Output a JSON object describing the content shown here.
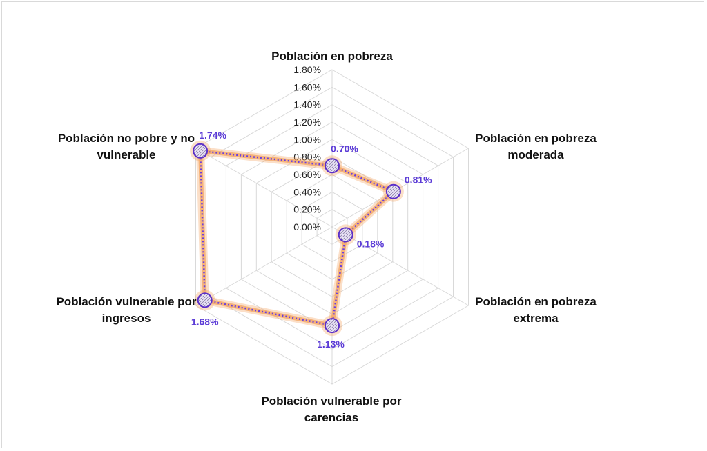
{
  "chart_data": {
    "type": "radar",
    "categories": [
      "Población en pobreza",
      "Población en pobreza moderada",
      "Población en pobreza extrema",
      "Población vulnerable por carencias",
      "Población vulnerable por ingresos",
      "Población no pobre y no vulnerable"
    ],
    "category_lines": [
      [
        "Población en pobreza"
      ],
      [
        "Población en pobreza",
        "moderada"
      ],
      [
        "Población en pobreza",
        "extrema"
      ],
      [
        "Población vulnerable por",
        "carencias"
      ],
      [
        "Población vulnerable por",
        "ingresos"
      ],
      [
        "Población no pobre y no",
        "vulnerable"
      ]
    ],
    "series": [
      {
        "values": [
          0.7,
          0.81,
          0.18,
          1.13,
          1.68,
          1.74
        ]
      }
    ],
    "data_labels": [
      "0.70%",
      "0.81%",
      "0.18%",
      "1.13%",
      "1.68%",
      "1.74%"
    ],
    "ticks": [
      "0.00%",
      "0.20%",
      "0.40%",
      "0.60%",
      "0.80%",
      "1.00%",
      "1.20%",
      "1.40%",
      "1.60%",
      "1.80%"
    ],
    "tick_values": [
      0,
      0.2,
      0.4,
      0.6,
      0.8,
      1.0,
      1.2,
      1.4,
      1.6,
      1.8
    ],
    "rmax": 1.8,
    "grid": true,
    "legend": "none",
    "colors": {
      "line": "#6a3fe0",
      "glow": "#f4a460",
      "marker_edge": "#5b2fc9",
      "grid": "#d9d9d9"
    }
  }
}
